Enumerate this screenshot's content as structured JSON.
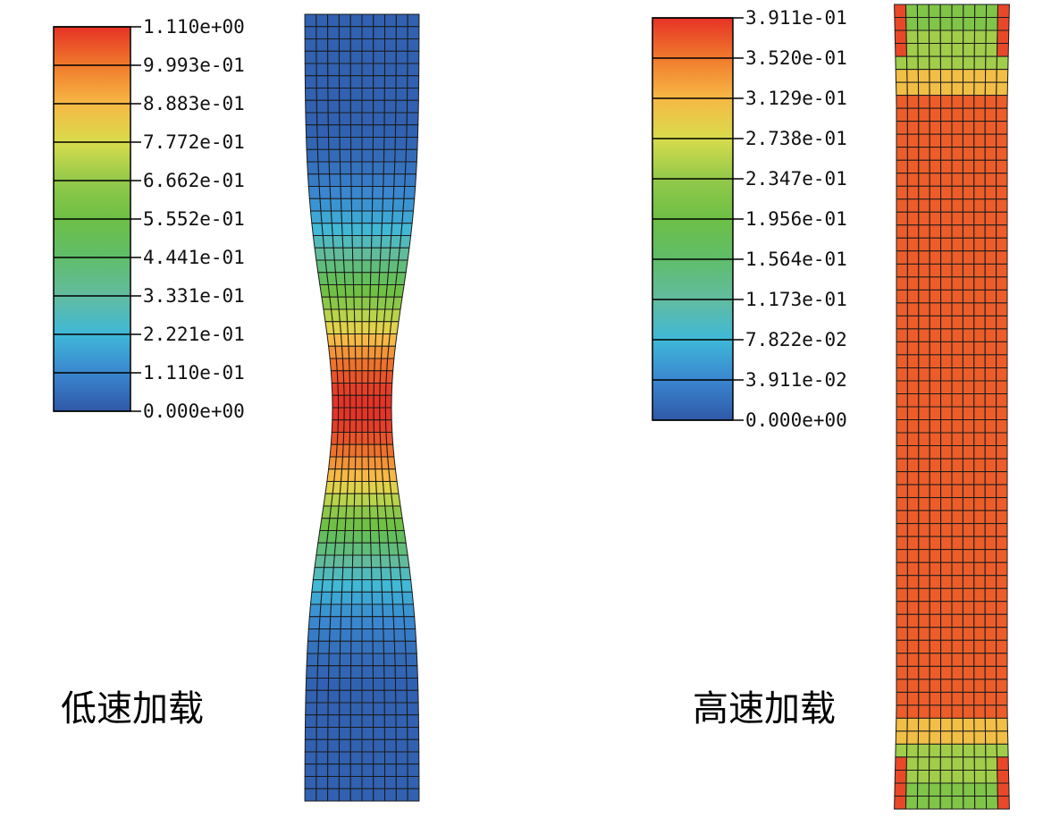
{
  "low_speed": {
    "caption": "低速加载",
    "legend": {
      "labels": [
        "1.110e+00",
        "9.993e-01",
        "8.883e-01",
        "7.772e-01",
        "6.662e-01",
        "5.552e-01",
        "4.441e-01",
        "3.331e-01",
        "2.221e-01",
        "1.110e-01",
        "0.000e+00"
      ],
      "colors": [
        "#e63226",
        "#f07a2c",
        "#f7b845",
        "#d8dc4c",
        "#93c94a",
        "#6dbf45",
        "#5fbd6a",
        "#62bca0",
        "#3fb8d8",
        "#3a86cf",
        "#2f58a8"
      ]
    }
  },
  "high_speed": {
    "caption": "高速加载",
    "legend": {
      "labels": [
        "3.911e-01",
        "3.520e-01",
        "3.129e-01",
        "2.738e-01",
        "2.347e-01",
        "1.956e-01",
        "1.564e-01",
        "1.173e-01",
        "7.822e-02",
        "3.911e-02",
        "0.000e+00"
      ],
      "colors": [
        "#e63226",
        "#f07a2c",
        "#f7b845",
        "#d8dc4c",
        "#93c94a",
        "#6dbf45",
        "#5fbd6a",
        "#62bca0",
        "#3fb8d8",
        "#3a86cf",
        "#2f58a8"
      ]
    }
  }
}
